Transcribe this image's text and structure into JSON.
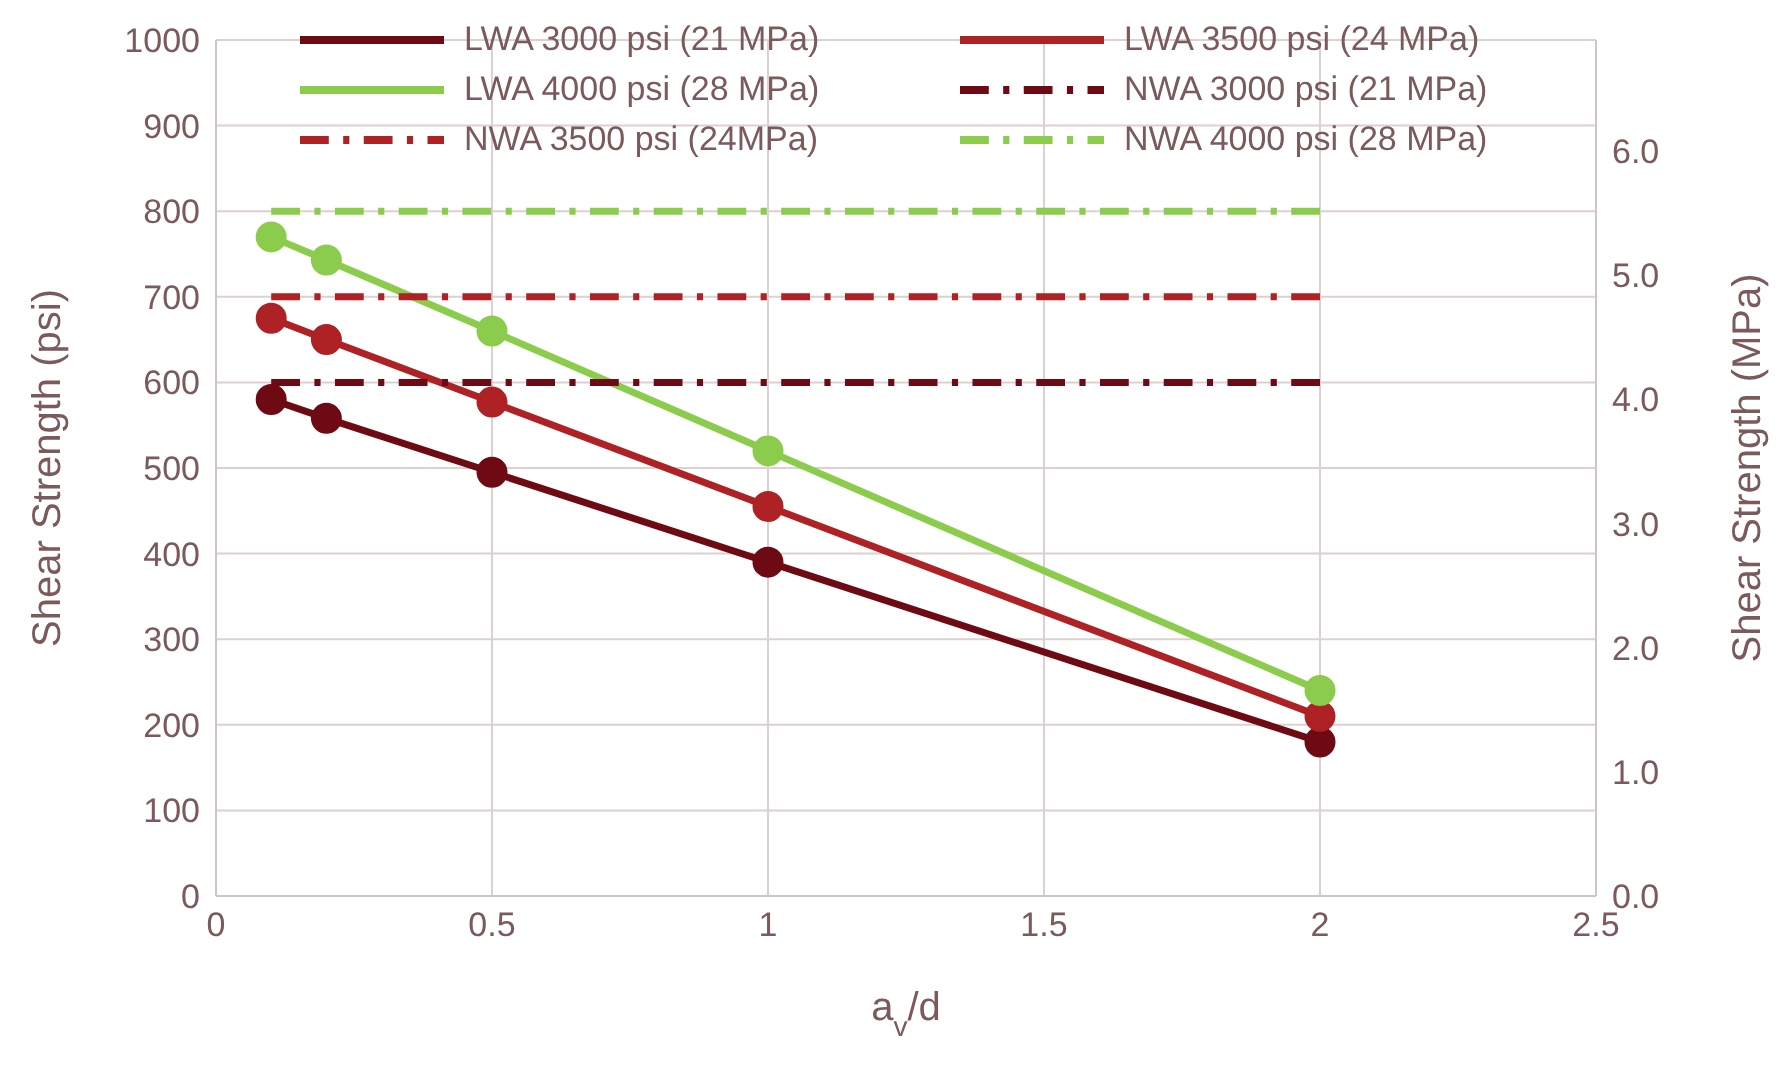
{
  "chart_data": {
    "type": "line",
    "xlabel": "a$_{v}$/d",
    "ylabel": "Shear Strength (psi)",
    "y2label": "Shear Strength (MPa)",
    "xlim": [
      0,
      2.5
    ],
    "xticks": [
      0,
      0.5,
      1,
      1.5,
      2,
      2.5
    ],
    "ylim": [
      0,
      1000
    ],
    "yticks": [
      0,
      100,
      200,
      300,
      400,
      500,
      600,
      700,
      800,
      900,
      1000
    ],
    "y2lim": [
      0,
      6.895
    ],
    "y2ticks": [
      {
        "value": 0,
        "label": "0.0"
      },
      {
        "value": 1,
        "label": "1.0"
      },
      {
        "value": 2,
        "label": "2.0"
      },
      {
        "value": 3,
        "label": "3.0"
      },
      {
        "value": 4,
        "label": "4.0"
      },
      {
        "value": 5,
        "label": "5.0"
      },
      {
        "value": 6,
        "label": "6.0"
      }
    ],
    "grid": true,
    "legend": "top",
    "series": [
      {
        "name": "LWA 3000 psi (21 MPa)",
        "color": "#6e0a14",
        "x": [
          0.1,
          0.2,
          0.5,
          1,
          2
        ],
        "values": [
          580,
          558,
          495,
          390,
          180
        ],
        "marker": "circle",
        "line_style": "solid"
      },
      {
        "name": "LWA 3500 psi (24 MPa)",
        "color": "#ae2124",
        "x": [
          0.1,
          0.2,
          0.5,
          1,
          2
        ],
        "values": [
          675,
          650,
          577,
          455,
          210
        ],
        "marker": "circle",
        "line_style": "solid"
      },
      {
        "name": "LWA 4000 psi (28 MPa)",
        "color": "#8ccc4c",
        "x": [
          0.1,
          0.2,
          0.5,
          1,
          2
        ],
        "values": [
          770,
          743,
          660,
          520,
          240
        ],
        "marker": "circle",
        "line_style": "solid"
      },
      {
        "name": "NWA 3000 psi (21 MPa)",
        "color": "#6e0a14",
        "x": [
          0.1,
          2
        ],
        "values": [
          600,
          600
        ],
        "marker": "none",
        "line_style": "dashed"
      },
      {
        "name": "NWA 3500 psi (24MPa)",
        "color": "#ae2124",
        "x": [
          0.1,
          2
        ],
        "values": [
          700,
          700
        ],
        "marker": "none",
        "line_style": "dashed"
      },
      {
        "name": "NWA 4000 psi (28 MPa)",
        "color": "#8ccc4c",
        "x": [
          0.1,
          2
        ],
        "values": [
          800,
          800
        ],
        "marker": "none",
        "line_style": "dashed"
      }
    ]
  }
}
